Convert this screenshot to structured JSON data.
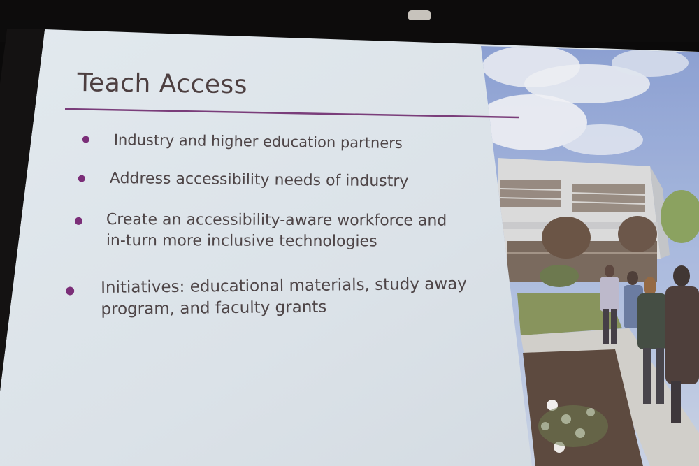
{
  "slide": {
    "title": "Teach Access",
    "bullets": [
      {
        "lines": [
          "Industry and higher education partners"
        ]
      },
      {
        "lines": [
          "Address accessibility needs of industry"
        ]
      },
      {
        "lines": [
          "Create an accessibility-aware workforce and",
          "in-turn more inclusive technologies"
        ]
      },
      {
        "lines": [
          "Initiatives: educational materials, study away",
          "program, and faculty grants"
        ]
      }
    ]
  },
  "colors": {
    "slide_background": "#dbe3e8",
    "title_rule": "#7a3d7a",
    "bullet_dot": "#7b2e78",
    "text": "#4e4547",
    "photo_sky": "#7f9ad4"
  }
}
